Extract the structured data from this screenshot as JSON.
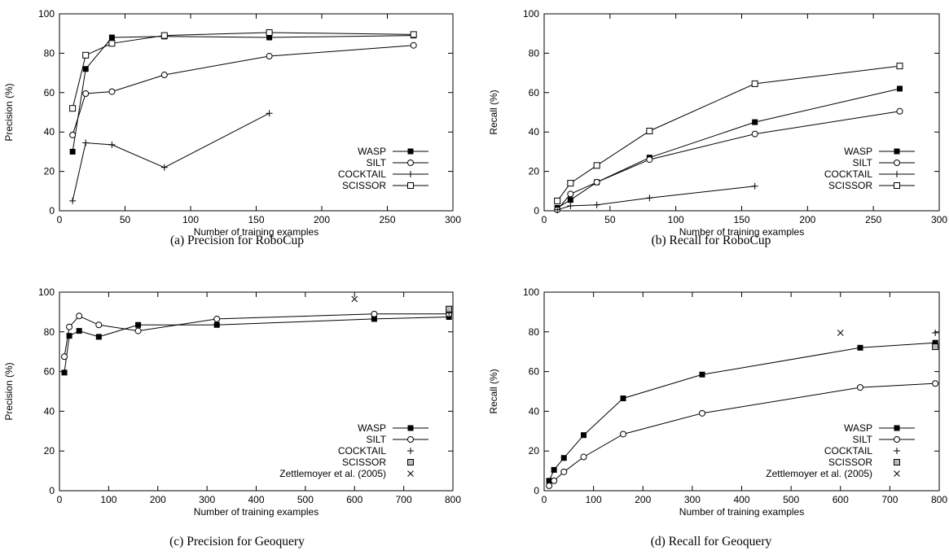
{
  "chart_data": [
    {
      "type": "line",
      "caption": "(a) Precision for RoboCup",
      "xlabel": "Number of training examples",
      "ylabel": "Precision (%)",
      "xlim": [
        0,
        300
      ],
      "ylim": [
        0,
        100
      ],
      "xticks": [
        0,
        50,
        100,
        150,
        200,
        250,
        300
      ],
      "yticks": [
        0,
        20,
        40,
        60,
        80,
        100
      ],
      "legend_position": "bottom-right",
      "series": [
        {
          "name": "WASP",
          "marker": "square-filled",
          "points": [
            [
              10,
              30
            ],
            [
              20,
              72
            ],
            [
              40,
              88
            ],
            [
              80,
              88.5
            ],
            [
              160,
              88
            ],
            [
              270,
              89
            ]
          ]
        },
        {
          "name": "SILT",
          "marker": "circle",
          "points": [
            [
              10,
              38.5
            ],
            [
              20,
              59.5
            ],
            [
              40,
              60.5
            ],
            [
              80,
              69
            ],
            [
              160,
              78.5
            ],
            [
              270,
              84
            ]
          ]
        },
        {
          "name": "COCKTAIL",
          "marker": "plus",
          "points": [
            [
              10,
              5
            ],
            [
              20,
              34.5
            ],
            [
              40,
              33.5
            ],
            [
              80,
              22
            ],
            [
              160,
              49.5
            ]
          ]
        },
        {
          "name": "SCISSOR",
          "marker": "square-open",
          "points": [
            [
              10,
              52
            ],
            [
              20,
              79
            ],
            [
              40,
              85
            ],
            [
              80,
              89
            ],
            [
              160,
              90.5
            ],
            [
              270,
              89.5
            ]
          ]
        }
      ]
    },
    {
      "type": "line",
      "caption": "(b) Recall for RoboCup",
      "xlabel": "Number of training examples",
      "ylabel": "Recall (%)",
      "xlim": [
        0,
        300
      ],
      "ylim": [
        0,
        100
      ],
      "xticks": [
        0,
        50,
        100,
        150,
        200,
        250,
        300
      ],
      "yticks": [
        0,
        20,
        40,
        60,
        80,
        100
      ],
      "legend_position": "bottom-right",
      "series": [
        {
          "name": "WASP",
          "marker": "square-filled",
          "points": [
            [
              10,
              1.5
            ],
            [
              20,
              5.5
            ],
            [
              40,
              14.5
            ],
            [
              80,
              27
            ],
            [
              160,
              45
            ],
            [
              270,
              62
            ]
          ]
        },
        {
          "name": "SILT",
          "marker": "circle",
          "points": [
            [
              10,
              0.5
            ],
            [
              20,
              8.5
            ],
            [
              40,
              14.5
            ],
            [
              80,
              26
            ],
            [
              160,
              39
            ],
            [
              270,
              50.5
            ]
          ]
        },
        {
          "name": "COCKTAIL",
          "marker": "plus",
          "points": [
            [
              10,
              0.5
            ],
            [
              20,
              2.5
            ],
            [
              40,
              3
            ],
            [
              80,
              6.5
            ],
            [
              160,
              12.5
            ]
          ]
        },
        {
          "name": "SCISSOR",
          "marker": "square-open",
          "points": [
            [
              10,
              5
            ],
            [
              20,
              14
            ],
            [
              40,
              23
            ],
            [
              80,
              40.5
            ],
            [
              160,
              64.5
            ],
            [
              270,
              73.5
            ]
          ]
        }
      ]
    },
    {
      "type": "line",
      "caption": "(c) Precision for Geoquery",
      "xlabel": "Number of training examples",
      "ylabel": "Precision (%)",
      "xlim": [
        0,
        800
      ],
      "ylim": [
        0,
        100
      ],
      "xticks": [
        0,
        100,
        200,
        300,
        400,
        500,
        600,
        700,
        800
      ],
      "yticks": [
        0,
        20,
        40,
        60,
        80,
        100
      ],
      "legend_position": "bottom-right",
      "series": [
        {
          "name": "WASP",
          "marker": "square-filled",
          "points": [
            [
              10,
              59.5
            ],
            [
              20,
              78
            ],
            [
              40,
              80.5
            ],
            [
              80,
              77.5
            ],
            [
              160,
              83.5
            ],
            [
              320,
              83.5
            ],
            [
              640,
              86.5
            ],
            [
              792,
              87.5
            ]
          ]
        },
        {
          "name": "SILT",
          "marker": "circle",
          "points": [
            [
              10,
              67.5
            ],
            [
              20,
              82.5
            ],
            [
              40,
              88
            ],
            [
              80,
              83.5
            ],
            [
              160,
              80.5
            ],
            [
              320,
              86.5
            ],
            [
              640,
              89
            ],
            [
              792,
              89
            ]
          ]
        },
        {
          "name": "COCKTAIL",
          "marker": "plus",
          "points": [
            [
              792,
              89.5
            ]
          ]
        },
        {
          "name": "SCISSOR",
          "marker": "square-open-gray",
          "points": [
            [
              792,
              91.5
            ]
          ]
        },
        {
          "name": "Zettlemoyer et al. (2005)",
          "marker": "cross",
          "points": [
            [
              600,
              96.5
            ]
          ]
        }
      ]
    },
    {
      "type": "line",
      "caption": "(d) Recall for Geoquery",
      "xlabel": "Number of training examples",
      "ylabel": "Recall (%)",
      "xlim": [
        0,
        800
      ],
      "ylim": [
        0,
        100
      ],
      "xticks": [
        0,
        100,
        200,
        300,
        400,
        500,
        600,
        700,
        800
      ],
      "yticks": [
        0,
        20,
        40,
        60,
        80,
        100
      ],
      "legend_position": "bottom-right",
      "series": [
        {
          "name": "WASP",
          "marker": "square-filled",
          "points": [
            [
              10,
              5
            ],
            [
              20,
              10.5
            ],
            [
              40,
              16.5
            ],
            [
              80,
              28
            ],
            [
              160,
              46.5
            ],
            [
              320,
              58.5
            ],
            [
              640,
              72
            ],
            [
              792,
              74.5
            ]
          ]
        },
        {
          "name": "SILT",
          "marker": "circle",
          "points": [
            [
              10,
              2.5
            ],
            [
              20,
              5
            ],
            [
              40,
              9.5
            ],
            [
              80,
              17
            ],
            [
              160,
              28.5
            ],
            [
              320,
              39
            ],
            [
              640,
              52
            ],
            [
              792,
              54
            ]
          ]
        },
        {
          "name": "COCKTAIL",
          "marker": "plus",
          "points": [
            [
              792,
              79.5
            ]
          ]
        },
        {
          "name": "SCISSOR",
          "marker": "square-open-gray",
          "points": [
            [
              792,
              72.5
            ]
          ]
        },
        {
          "name": "Zettlemoyer et al. (2005)",
          "marker": "cross",
          "points": [
            [
              600,
              79.5
            ]
          ]
        }
      ]
    }
  ]
}
